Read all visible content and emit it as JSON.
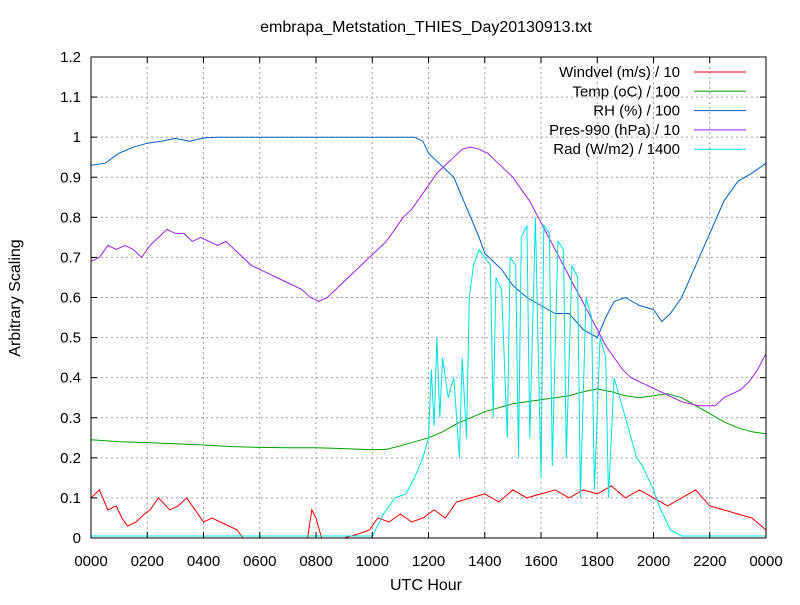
{
  "chart_data": {
    "type": "line",
    "title": "embrapa_Metstation_THIES_Day20130913.txt",
    "xlabel": "UTC Hour",
    "ylabel": "Arbitrary Scaling",
    "x_tick_labels": [
      "0000",
      "0200",
      "0400",
      "0600",
      "0800",
      "1000",
      "1200",
      "1400",
      "1600",
      "1800",
      "2000",
      "2200",
      "0000"
    ],
    "y_tick_labels": [
      "0",
      "0.1",
      "0.2",
      "0.3",
      "0.4",
      "0.5",
      "0.6",
      "0.7",
      "0.8",
      "0.9",
      "1",
      "1.1",
      "1.2"
    ],
    "xlim_hours": [
      0,
      24
    ],
    "ylim": [
      0,
      1.2
    ],
    "grid": true,
    "legend_position": "top-right",
    "series": [
      {
        "name": "Windvel (m/s) / 10",
        "color": "#ff0000",
        "points": [
          [
            0,
            0.1
          ],
          [
            0.3,
            0.12
          ],
          [
            0.6,
            0.07
          ],
          [
            0.9,
            0.08
          ],
          [
            1.1,
            0.05
          ],
          [
            1.3,
            0.03
          ],
          [
            1.6,
            0.04
          ],
          [
            1.9,
            0.06
          ],
          [
            2.1,
            0.07
          ],
          [
            2.4,
            0.1
          ],
          [
            2.8,
            0.07
          ],
          [
            3.1,
            0.08
          ],
          [
            3.4,
            0.1
          ],
          [
            3.7,
            0.07
          ],
          [
            4.0,
            0.04
          ],
          [
            4.3,
            0.05
          ],
          [
            4.6,
            0.04
          ],
          [
            4.9,
            0.03
          ],
          [
            5.2,
            0.02
          ],
          [
            5.4,
            0.0
          ],
          [
            6.0,
            0.0
          ],
          [
            7.5,
            0.0
          ],
          [
            7.7,
            0.0
          ],
          [
            7.85,
            0.07
          ],
          [
            8.0,
            0.05
          ],
          [
            8.2,
            0.0
          ],
          [
            9.0,
            0.0
          ],
          [
            9.5,
            0.01
          ],
          [
            9.9,
            0.02
          ],
          [
            10.2,
            0.05
          ],
          [
            10.6,
            0.04
          ],
          [
            11.0,
            0.06
          ],
          [
            11.4,
            0.04
          ],
          [
            11.8,
            0.05
          ],
          [
            12.2,
            0.07
          ],
          [
            12.6,
            0.05
          ],
          [
            13.0,
            0.09
          ],
          [
            13.5,
            0.1
          ],
          [
            14.0,
            0.11
          ],
          [
            14.5,
            0.09
          ],
          [
            15.0,
            0.12
          ],
          [
            15.5,
            0.1
          ],
          [
            16.0,
            0.11
          ],
          [
            16.5,
            0.12
          ],
          [
            17.0,
            0.1
          ],
          [
            17.5,
            0.12
          ],
          [
            18.0,
            0.11
          ],
          [
            18.5,
            0.13
          ],
          [
            19.0,
            0.1
          ],
          [
            19.5,
            0.12
          ],
          [
            20.0,
            0.1
          ],
          [
            20.5,
            0.08
          ],
          [
            21.0,
            0.1
          ],
          [
            21.5,
            0.12
          ],
          [
            22.0,
            0.08
          ],
          [
            22.5,
            0.07
          ],
          [
            23.0,
            0.06
          ],
          [
            23.5,
            0.05
          ],
          [
            24.0,
            0.02
          ]
        ]
      },
      {
        "name": "Temp (oC) / 100",
        "color": "#00a000",
        "points": [
          [
            0,
            0.245
          ],
          [
            1,
            0.24
          ],
          [
            2,
            0.238
          ],
          [
            3,
            0.235
          ],
          [
            4,
            0.232
          ],
          [
            5,
            0.228
          ],
          [
            6,
            0.226
          ],
          [
            7,
            0.225
          ],
          [
            8,
            0.225
          ],
          [
            9,
            0.223
          ],
          [
            10,
            0.22
          ],
          [
            10.5,
            0.221
          ],
          [
            11,
            0.23
          ],
          [
            11.5,
            0.24
          ],
          [
            12,
            0.25
          ],
          [
            12.5,
            0.265
          ],
          [
            13,
            0.285
          ],
          [
            13.5,
            0.3
          ],
          [
            14,
            0.315
          ],
          [
            14.5,
            0.325
          ],
          [
            15,
            0.335
          ],
          [
            15.5,
            0.34
          ],
          [
            16,
            0.345
          ],
          [
            16.5,
            0.35
          ],
          [
            17,
            0.355
          ],
          [
            17.5,
            0.365
          ],
          [
            18,
            0.372
          ],
          [
            18.5,
            0.365
          ],
          [
            19,
            0.355
          ],
          [
            19.5,
            0.35
          ],
          [
            20,
            0.355
          ],
          [
            20.5,
            0.36
          ],
          [
            21,
            0.35
          ],
          [
            21.5,
            0.33
          ],
          [
            22,
            0.31
          ],
          [
            22.5,
            0.29
          ],
          [
            23,
            0.275
          ],
          [
            23.5,
            0.265
          ],
          [
            24,
            0.26
          ]
        ]
      },
      {
        "name": "RH (%) / 100",
        "color": "#0060c0",
        "points": [
          [
            0,
            0.93
          ],
          [
            0.5,
            0.935
          ],
          [
            1,
            0.96
          ],
          [
            1.5,
            0.975
          ],
          [
            2,
            0.985
          ],
          [
            2.5,
            0.99
          ],
          [
            3,
            0.997
          ],
          [
            3.5,
            0.99
          ],
          [
            4,
            0.998
          ],
          [
            4.5,
            1.0
          ],
          [
            5,
            1.0
          ],
          [
            6,
            1.0
          ],
          [
            7,
            1.0
          ],
          [
            8,
            1.0
          ],
          [
            9,
            1.0
          ],
          [
            10,
            1.0
          ],
          [
            11,
            1.0
          ],
          [
            11.5,
            1.0
          ],
          [
            11.8,
            0.99
          ],
          [
            12,
            0.96
          ],
          [
            12.3,
            0.94
          ],
          [
            12.6,
            0.92
          ],
          [
            12.9,
            0.9
          ],
          [
            13.2,
            0.85
          ],
          [
            13.5,
            0.8
          ],
          [
            13.8,
            0.75
          ],
          [
            14,
            0.71
          ],
          [
            14.3,
            0.69
          ],
          [
            14.6,
            0.67
          ],
          [
            15,
            0.63
          ],
          [
            15.5,
            0.6
          ],
          [
            16,
            0.58
          ],
          [
            16.5,
            0.56
          ],
          [
            17,
            0.56
          ],
          [
            17.5,
            0.52
          ],
          [
            18,
            0.5
          ],
          [
            18.3,
            0.55
          ],
          [
            18.6,
            0.59
          ],
          [
            19,
            0.6
          ],
          [
            19.5,
            0.58
          ],
          [
            20,
            0.57
          ],
          [
            20.3,
            0.54
          ],
          [
            20.6,
            0.56
          ],
          [
            21,
            0.6
          ],
          [
            21.5,
            0.68
          ],
          [
            22,
            0.76
          ],
          [
            22.5,
            0.84
          ],
          [
            23,
            0.89
          ],
          [
            23.5,
            0.91
          ],
          [
            24,
            0.935
          ]
        ]
      },
      {
        "name": "Pres-990 (hPa) / 10",
        "color": "#a020f0",
        "points": [
          [
            0,
            0.69
          ],
          [
            0.3,
            0.7
          ],
          [
            0.6,
            0.73
          ],
          [
            0.9,
            0.72
          ],
          [
            1.2,
            0.73
          ],
          [
            1.5,
            0.72
          ],
          [
            1.8,
            0.7
          ],
          [
            2.1,
            0.73
          ],
          [
            2.4,
            0.75
          ],
          [
            2.7,
            0.77
          ],
          [
            3.0,
            0.76
          ],
          [
            3.3,
            0.76
          ],
          [
            3.6,
            0.74
          ],
          [
            3.9,
            0.75
          ],
          [
            4.2,
            0.74
          ],
          [
            4.5,
            0.73
          ],
          [
            4.8,
            0.74
          ],
          [
            5.1,
            0.72
          ],
          [
            5.4,
            0.7
          ],
          [
            5.7,
            0.68
          ],
          [
            6.0,
            0.67
          ],
          [
            6.3,
            0.66
          ],
          [
            6.6,
            0.65
          ],
          [
            6.9,
            0.64
          ],
          [
            7.2,
            0.63
          ],
          [
            7.5,
            0.62
          ],
          [
            7.8,
            0.6
          ],
          [
            8.1,
            0.59
          ],
          [
            8.4,
            0.6
          ],
          [
            8.7,
            0.62
          ],
          [
            9.0,
            0.64
          ],
          [
            9.3,
            0.66
          ],
          [
            9.6,
            0.68
          ],
          [
            9.9,
            0.7
          ],
          [
            10.2,
            0.72
          ],
          [
            10.5,
            0.74
          ],
          [
            10.8,
            0.77
          ],
          [
            11.1,
            0.8
          ],
          [
            11.4,
            0.82
          ],
          [
            11.7,
            0.85
          ],
          [
            12.0,
            0.88
          ],
          [
            12.3,
            0.91
          ],
          [
            12.6,
            0.93
          ],
          [
            12.9,
            0.95
          ],
          [
            13.2,
            0.97
          ],
          [
            13.5,
            0.975
          ],
          [
            13.8,
            0.97
          ],
          [
            14.1,
            0.96
          ],
          [
            14.4,
            0.94
          ],
          [
            14.7,
            0.92
          ],
          [
            15.0,
            0.9
          ],
          [
            15.3,
            0.87
          ],
          [
            15.6,
            0.84
          ],
          [
            15.9,
            0.8
          ],
          [
            16.2,
            0.76
          ],
          [
            16.5,
            0.72
          ],
          [
            16.8,
            0.68
          ],
          [
            17.1,
            0.64
          ],
          [
            17.4,
            0.6
          ],
          [
            17.7,
            0.56
          ],
          [
            18.0,
            0.52
          ],
          [
            18.3,
            0.48
          ],
          [
            18.6,
            0.45
          ],
          [
            18.9,
            0.42
          ],
          [
            19.2,
            0.4
          ],
          [
            19.5,
            0.39
          ],
          [
            19.8,
            0.38
          ],
          [
            20.1,
            0.37
          ],
          [
            20.4,
            0.36
          ],
          [
            20.7,
            0.35
          ],
          [
            21.0,
            0.34
          ],
          [
            21.3,
            0.335
          ],
          [
            21.6,
            0.33
          ],
          [
            21.9,
            0.33
          ],
          [
            22.2,
            0.33
          ],
          [
            22.5,
            0.35
          ],
          [
            22.8,
            0.36
          ],
          [
            23.1,
            0.37
          ],
          [
            23.4,
            0.39
          ],
          [
            23.7,
            0.42
          ],
          [
            24,
            0.46
          ]
        ]
      },
      {
        "name": "Rad (W/m2) / 1400",
        "color": "#00e0e0",
        "points": [
          [
            0,
            0.005
          ],
          [
            10.0,
            0.005
          ],
          [
            10.4,
            0.06
          ],
          [
            10.8,
            0.1
          ],
          [
            11.2,
            0.11
          ],
          [
            11.5,
            0.15
          ],
          [
            11.8,
            0.2
          ],
          [
            12.0,
            0.25
          ],
          [
            12.1,
            0.42
          ],
          [
            12.2,
            0.28
          ],
          [
            12.3,
            0.5
          ],
          [
            12.4,
            0.3
          ],
          [
            12.5,
            0.45
          ],
          [
            12.7,
            0.35
          ],
          [
            12.9,
            0.4
          ],
          [
            13.1,
            0.2
          ],
          [
            13.2,
            0.45
          ],
          [
            13.35,
            0.25
          ],
          [
            13.45,
            0.6
          ],
          [
            13.6,
            0.68
          ],
          [
            13.8,
            0.72
          ],
          [
            14.0,
            0.7
          ],
          [
            14.2,
            0.68
          ],
          [
            14.3,
            0.3
          ],
          [
            14.4,
            0.65
          ],
          [
            14.6,
            0.62
          ],
          [
            14.8,
            0.25
          ],
          [
            14.9,
            0.7
          ],
          [
            15.1,
            0.68
          ],
          [
            15.2,
            0.2
          ],
          [
            15.3,
            0.75
          ],
          [
            15.5,
            0.78
          ],
          [
            15.6,
            0.25
          ],
          [
            15.8,
            0.8
          ],
          [
            16.0,
            0.15
          ],
          [
            16.1,
            0.78
          ],
          [
            16.3,
            0.76
          ],
          [
            16.4,
            0.18
          ],
          [
            16.6,
            0.74
          ],
          [
            16.8,
            0.72
          ],
          [
            16.9,
            0.2
          ],
          [
            17.1,
            0.68
          ],
          [
            17.3,
            0.65
          ],
          [
            17.4,
            0.1
          ],
          [
            17.6,
            0.6
          ],
          [
            17.8,
            0.55
          ],
          [
            17.9,
            0.12
          ],
          [
            18.1,
            0.5
          ],
          [
            18.3,
            0.45
          ],
          [
            18.4,
            0.1
          ],
          [
            18.6,
            0.4
          ],
          [
            18.8,
            0.35
          ],
          [
            19.0,
            0.3
          ],
          [
            19.2,
            0.25
          ],
          [
            19.4,
            0.2
          ],
          [
            19.6,
            0.18
          ],
          [
            19.8,
            0.15
          ],
          [
            20.0,
            0.12
          ],
          [
            20.2,
            0.08
          ],
          [
            20.4,
            0.05
          ],
          [
            20.6,
            0.02
          ],
          [
            21.0,
            0.005
          ],
          [
            24,
            0.005
          ]
        ]
      }
    ]
  }
}
